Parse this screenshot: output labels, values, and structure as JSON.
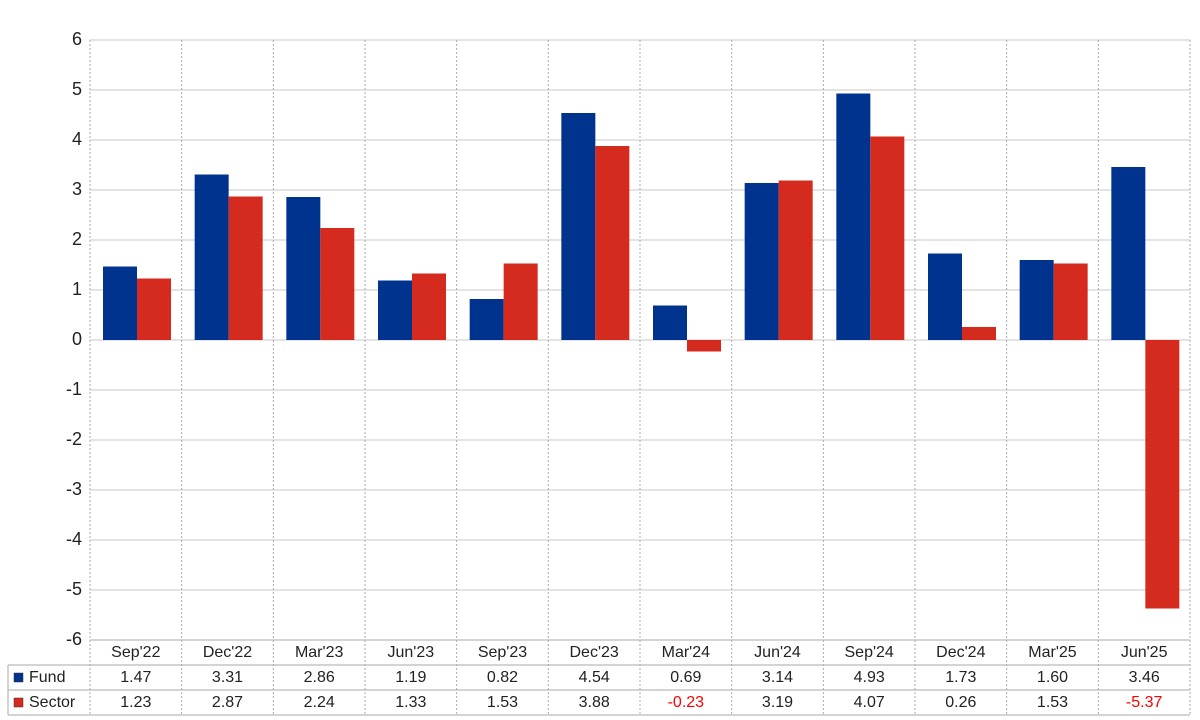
{
  "chart_data": {
    "type": "bar",
    "categories": [
      "Sep'22",
      "Dec'22",
      "Mar'23",
      "Jun'23",
      "Sep'23",
      "Dec'23",
      "Mar'24",
      "Jun'24",
      "Sep'24",
      "Dec'24",
      "Mar'25",
      "Jun'25"
    ],
    "series": [
      {
        "name": "Fund",
        "color": "#00338d",
        "values": [
          1.47,
          3.31,
          2.86,
          1.19,
          0.82,
          4.54,
          0.69,
          3.14,
          4.93,
          1.73,
          1.6,
          3.46
        ],
        "value_labels": [
          "1.47",
          "3.31",
          "2.86",
          "1.19",
          "0.82",
          "4.54",
          "0.69",
          "3.14",
          "4.93",
          "1.73",
          "1.60",
          "3.46"
        ]
      },
      {
        "name": "Sector",
        "color": "#d52b1e",
        "values": [
          1.23,
          2.87,
          2.24,
          1.33,
          1.53,
          3.88,
          -0.23,
          3.19,
          4.07,
          0.26,
          1.53,
          -5.37
        ],
        "value_labels": [
          "1.23",
          "2.87",
          "2.24",
          "1.33",
          "1.53",
          "3.88",
          "-0.23",
          "3.19",
          "4.07",
          "0.26",
          "1.53",
          "-5.37"
        ]
      }
    ],
    "ylim": [
      -6,
      6
    ],
    "yticks": [
      -6,
      -5,
      -4,
      -3,
      -2,
      -1,
      0,
      1,
      2,
      3,
      4,
      5,
      6
    ],
    "grid": true,
    "negative_label_color": "#ff0000"
  }
}
